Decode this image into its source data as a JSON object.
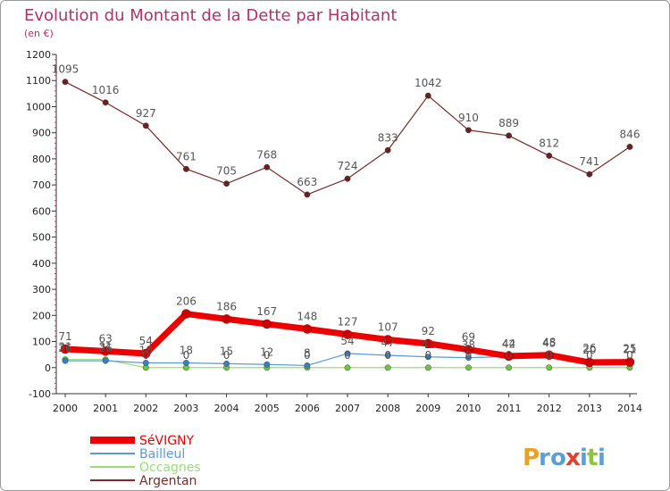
{
  "chart_data": {
    "type": "line",
    "title": "Evolution du Montant de la Dette par Habitant",
    "subtitle": "(en €)",
    "xlabel": "",
    "ylabel": "",
    "x": [
      "2000",
      "2001",
      "2002",
      "2003",
      "2004",
      "2005",
      "2006",
      "2007",
      "2008",
      "2009",
      "2010",
      "2011",
      "2012",
      "2013",
      "2014"
    ],
    "ylim": [
      -100,
      1200
    ],
    "yticks": [
      -100,
      0,
      100,
      200,
      300,
      400,
      500,
      600,
      700,
      800,
      900,
      1000,
      1100,
      1200
    ],
    "grid": false,
    "legend": "bottom-left",
    "series": [
      {
        "name": "SéVIGNY",
        "color": "#ee0000",
        "point_color": "#cc0000",
        "emphasis": true,
        "values": [
          71,
          63,
          54,
          206,
          186,
          167,
          148,
          127,
          107,
          92,
          69,
          44,
          48,
          20,
          21
        ],
        "labels": [
          "71",
          "63",
          "54",
          "206",
          "186",
          "167",
          "148",
          "127",
          "107",
          "92",
          "69",
          "44",
          "48",
          "20",
          "21"
        ]
      },
      {
        "name": "Bailleul",
        "color": "#5b9bd5",
        "point_color": "#3a7fc0",
        "emphasis": false,
        "values": [
          26,
          26,
          18,
          18,
          15,
          12,
          8,
          54,
          47,
          41,
          38,
          42,
          45,
          26,
          25
        ],
        "labels": [
          "26",
          "26",
          "18",
          "18",
          "15",
          "12",
          "8",
          "54",
          "47",
          "41",
          "38",
          "42",
          "45",
          "26",
          "25"
        ]
      },
      {
        "name": "Occagnes",
        "color": "#99dd77",
        "point_color": "#66cc33",
        "emphasis": false,
        "values": [
          31,
          31,
          0,
          0,
          0,
          0,
          0,
          0,
          0,
          0,
          0,
          0,
          0,
          0,
          0
        ],
        "labels": [
          "31",
          "31",
          "0",
          "0",
          "0",
          "0",
          "0",
          "0",
          "0",
          "0",
          "0",
          "0",
          "0",
          "0",
          "0"
        ]
      },
      {
        "name": "Argentan",
        "color": "#7a2a2a",
        "point_color": "#6b1f1f",
        "emphasis": false,
        "values": [
          1095,
          1016,
          927,
          761,
          705,
          768,
          663,
          724,
          833,
          1042,
          910,
          889,
          812,
          741,
          846
        ],
        "labels": [
          "1095",
          "1016",
          "927",
          "761",
          "705",
          "768",
          "663",
          "724",
          "833",
          "1042",
          "910",
          "889",
          "812",
          "741",
          "846"
        ]
      }
    ]
  },
  "watermark": {
    "logo_text": "Proxiti"
  }
}
